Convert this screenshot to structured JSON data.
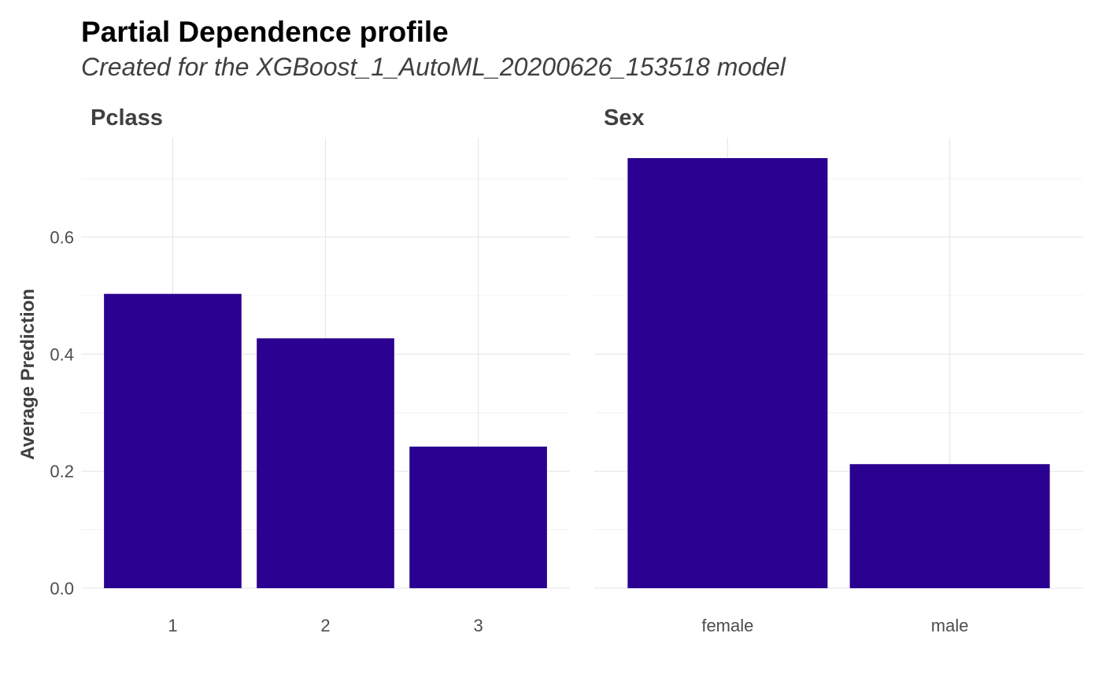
{
  "colors": {
    "bar": "#2a0190",
    "grid_major": "#e6e6e6",
    "grid_minor": "#f0f0f0",
    "text_dark": "#404040",
    "title": "#000000"
  },
  "chart_data": {
    "type": "bar",
    "title": "Partial Dependence profile",
    "subtitle": "Created for the XGBoost_1_AutoML_20200626_153518 model",
    "ylabel": "Average Prediction",
    "xlabel": "",
    "ylim": [
      0,
      0.77
    ],
    "yticks": [
      0.0,
      0.2,
      0.4,
      0.6
    ],
    "ytick_labels": [
      "0.0",
      "0.2",
      "0.4",
      "0.6"
    ],
    "grid": true,
    "legend": "none",
    "panels": [
      {
        "name": "Pclass",
        "categories": [
          "1",
          "2",
          "3"
        ],
        "values": [
          0.503,
          0.427,
          0.242
        ]
      },
      {
        "name": "Sex",
        "categories": [
          "female",
          "male"
        ],
        "values": [
          0.735,
          0.212
        ]
      }
    ]
  }
}
